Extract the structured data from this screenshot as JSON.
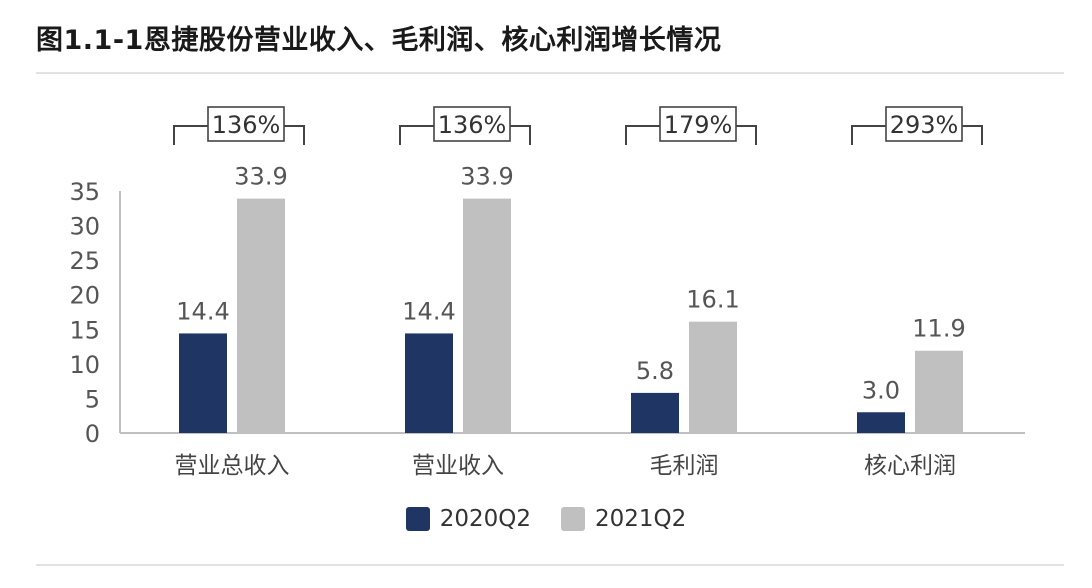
{
  "title": "图1.1-1恩捷股份营业收入、毛利润、核心利润增长情况",
  "colors": {
    "2020Q2": "#1f3564",
    "2021Q2": "#c0c0c0"
  },
  "chart_data": {
    "type": "bar",
    "title": "图1.1-1恩捷股份营业收入、毛利润、核心利润增长情况",
    "categories": [
      "营业总收入",
      "营业收入",
      "毛利润",
      "核心利润"
    ],
    "series": [
      {
        "name": "2020Q2",
        "values": [
          14.4,
          14.4,
          5.8,
          3.0
        ]
      },
      {
        "name": "2021Q2",
        "values": [
          33.9,
          33.9,
          16.1,
          11.9
        ]
      }
    ],
    "value_labels": [
      [
        "14.4",
        "14.4",
        "5.8",
        "3.0"
      ],
      [
        "33.9",
        "33.9",
        "16.1",
        "11.9"
      ]
    ],
    "growth_labels": [
      "136%",
      "136%",
      "179%",
      "293%"
    ],
    "yticks": [
      "0",
      "5",
      "10",
      "15",
      "20",
      "25",
      "30",
      "35"
    ],
    "ylim": [
      0,
      35
    ],
    "xlabel": "",
    "ylabel": "",
    "grid": false,
    "legend_position": "bottom-center"
  }
}
